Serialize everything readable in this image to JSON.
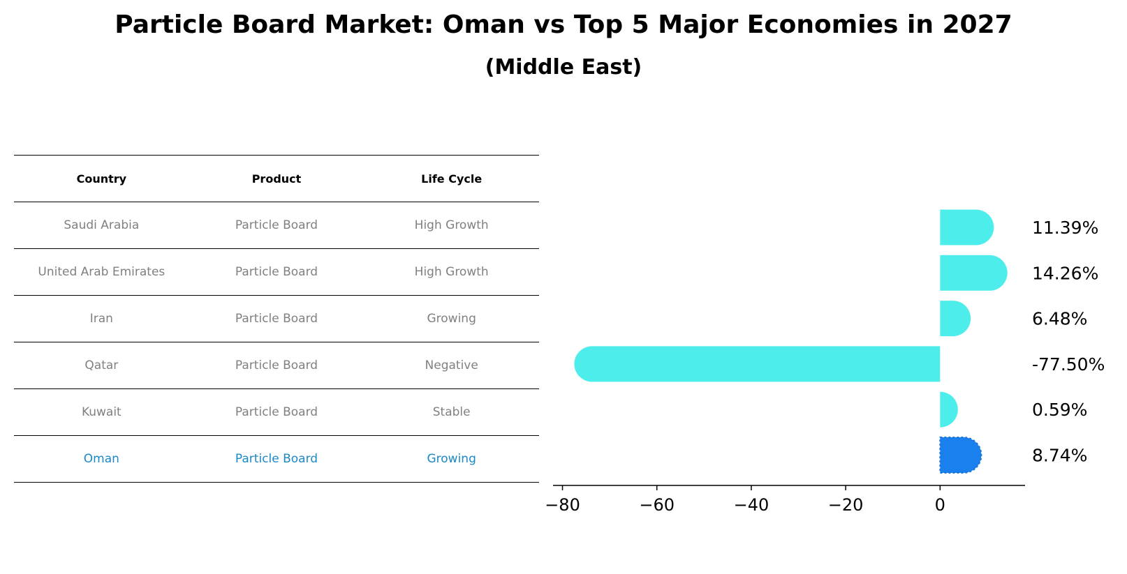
{
  "title": "Particle Board Market: Oman vs Top 5 Major Economies in 2027",
  "subtitle": "(Middle East)",
  "table": {
    "headers": [
      "Country",
      "Product",
      "Life Cycle"
    ],
    "rows": [
      [
        "Saudi Arabia",
        "Particle Board",
        "High Growth"
      ],
      [
        "United Arab Emirates",
        "Particle Board",
        "High Growth"
      ],
      [
        "Iran",
        "Particle Board",
        "Growing"
      ],
      [
        "Qatar",
        "Particle Board",
        "Negative"
      ],
      [
        "Kuwait",
        "Particle Board",
        "Stable"
      ],
      [
        "Oman",
        "Particle Board",
        "Growing"
      ]
    ],
    "highlight_row": 5
  },
  "chart_data": {
    "type": "bar",
    "orientation": "horizontal",
    "categories": [
      "Saudi Arabia",
      "United Arab Emirates",
      "Iran",
      "Qatar",
      "Kuwait",
      "Oman"
    ],
    "values": [
      11.39,
      14.26,
      6.48,
      -77.5,
      0.59,
      8.74
    ],
    "labels": [
      "11.39%",
      "14.26%",
      "6.48%",
      "-77.50%",
      "0.59%",
      "8.74%"
    ],
    "xticks": [
      -80,
      -60,
      -40,
      -20,
      0
    ],
    "xtick_labels": [
      "−80",
      "−60",
      "−40",
      "−20",
      "0"
    ],
    "xlim": [
      -82,
      18
    ],
    "colors": {
      "default": "#4DEDEB",
      "highlight": "#1A80EE",
      "highlight_index": 5
    },
    "grid": false
  }
}
